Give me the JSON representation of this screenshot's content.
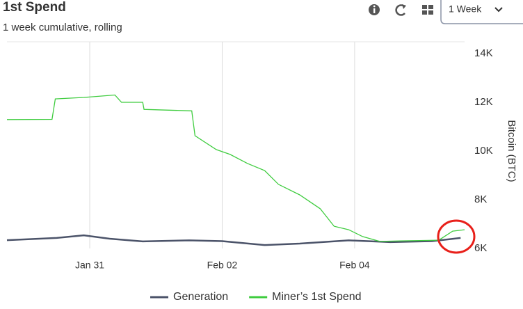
{
  "range_selector": "1 Week",
  "chart_data": {
    "type": "line",
    "title": "1st Spend",
    "subtitle": "1 week cumulative, rolling",
    "y_label": "Bitcoin (BTC)",
    "xlim": [
      29.75,
      36.66
    ],
    "xticks": [
      {
        "value": 31,
        "label": "Jan 31"
      },
      {
        "value": 33,
        "label": "Feb 02"
      },
      {
        "value": 35,
        "label": "Feb 04"
      }
    ],
    "ylim": [
      6000,
      14000
    ],
    "yticks": [
      {
        "value": 6000,
        "label": "6K"
      },
      {
        "value": 8000,
        "label": "8K"
      },
      {
        "value": 10000,
        "label": "10K"
      },
      {
        "value": 12000,
        "label": "12K"
      },
      {
        "value": 14000,
        "label": "14K"
      }
    ],
    "xgrid": true,
    "ygrid": false,
    "y_axis_side": "right",
    "legend": "bottom",
    "series": [
      {
        "name": "Generation",
        "color": "#4b5369",
        "x": [
          29.75,
          30.5,
          30.91,
          31.3,
          31.8,
          32.5,
          33.0,
          33.64,
          34.17,
          34.91,
          35.54,
          36.17,
          36.6
        ],
        "values": [
          6340,
          6430,
          6540,
          6400,
          6290,
          6330,
          6300,
          6140,
          6200,
          6330,
          6260,
          6300,
          6430
        ]
      },
      {
        "name": "Miner’s 1st Spend",
        "color": "#3fcc3f",
        "x": [
          29.75,
          30.43,
          30.48,
          30.91,
          31.38,
          31.43,
          31.48,
          31.8,
          31.82,
          32.54,
          32.59,
          32.91,
          33.12,
          33.38,
          33.64,
          33.85,
          34.17,
          34.48,
          34.69,
          34.91,
          35.12,
          35.38,
          35.69,
          36.27,
          36.48,
          36.66
        ],
        "values": [
          11290,
          11300,
          12140,
          12200,
          12300,
          12150,
          12000,
          12000,
          11710,
          11650,
          10630,
          10060,
          9860,
          9490,
          9200,
          8630,
          8200,
          7630,
          6910,
          6770,
          6490,
          6290,
          6310,
          6340,
          6710,
          6770
        ]
      }
    ]
  }
}
